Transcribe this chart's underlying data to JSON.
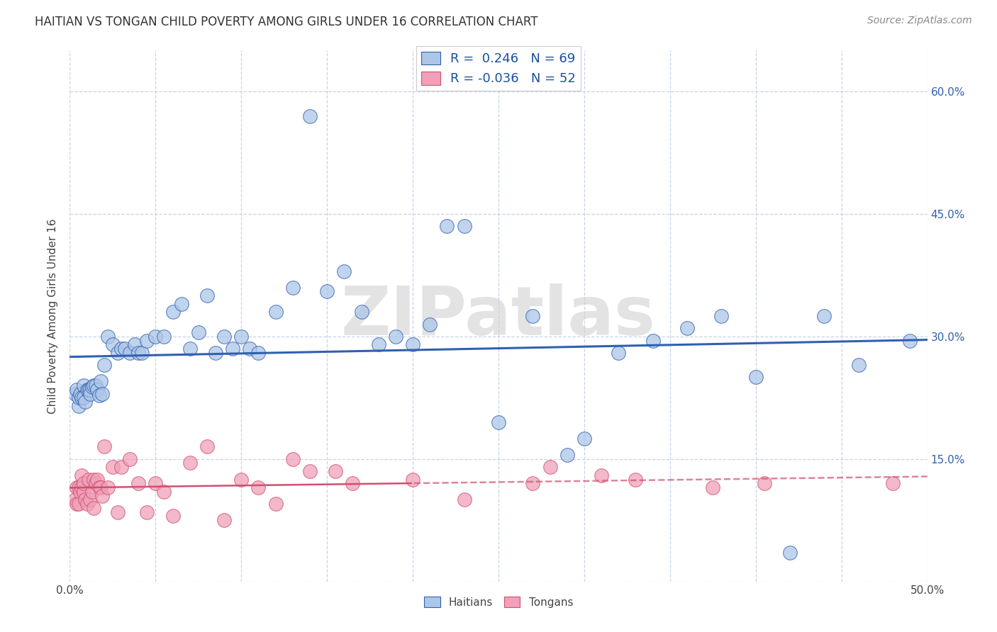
{
  "title": "HAITIAN VS TONGAN CHILD POVERTY AMONG GIRLS UNDER 16 CORRELATION CHART",
  "source": "Source: ZipAtlas.com",
  "ylabel": "Child Poverty Among Girls Under 16",
  "xlim": [
    0.0,
    0.5
  ],
  "ylim": [
    0.0,
    0.65
  ],
  "x_ticks": [
    0.0,
    0.05,
    0.1,
    0.15,
    0.2,
    0.25,
    0.3,
    0.35,
    0.4,
    0.45,
    0.5
  ],
  "y_ticks": [
    0.0,
    0.15,
    0.3,
    0.45,
    0.6
  ],
  "haitian_R": 0.246,
  "haitian_N": 69,
  "tongan_R": -0.036,
  "tongan_N": 52,
  "haitian_color": "#adc6e8",
  "tongan_color": "#f0a0b8",
  "haitian_line_color": "#3060b0",
  "tongan_line_color": "#d05070",
  "background_color": "#ffffff",
  "grid_color": "#c8d4e8",
  "watermark": "ZIPatlas",
  "haitian_x": [
    0.003,
    0.004,
    0.005,
    0.005,
    0.006,
    0.007,
    0.008,
    0.008,
    0.009,
    0.01,
    0.011,
    0.012,
    0.012,
    0.013,
    0.014,
    0.015,
    0.016,
    0.017,
    0.018,
    0.019,
    0.02,
    0.022,
    0.025,
    0.028,
    0.03,
    0.032,
    0.035,
    0.038,
    0.04,
    0.042,
    0.045,
    0.05,
    0.055,
    0.06,
    0.065,
    0.07,
    0.075,
    0.08,
    0.085,
    0.09,
    0.095,
    0.1,
    0.105,
    0.11,
    0.12,
    0.13,
    0.14,
    0.15,
    0.16,
    0.17,
    0.18,
    0.19,
    0.2,
    0.21,
    0.22,
    0.23,
    0.25,
    0.27,
    0.29,
    0.3,
    0.32,
    0.34,
    0.36,
    0.38,
    0.4,
    0.42,
    0.44,
    0.46,
    0.49
  ],
  "haitian_y": [
    0.23,
    0.235,
    0.215,
    0.225,
    0.23,
    0.225,
    0.24,
    0.225,
    0.22,
    0.235,
    0.235,
    0.235,
    0.23,
    0.238,
    0.24,
    0.24,
    0.235,
    0.228,
    0.245,
    0.23,
    0.265,
    0.3,
    0.29,
    0.28,
    0.285,
    0.285,
    0.28,
    0.29,
    0.28,
    0.28,
    0.295,
    0.3,
    0.3,
    0.33,
    0.34,
    0.285,
    0.305,
    0.35,
    0.28,
    0.3,
    0.285,
    0.3,
    0.285,
    0.28,
    0.33,
    0.36,
    0.57,
    0.355,
    0.38,
    0.33,
    0.29,
    0.3,
    0.29,
    0.315,
    0.435,
    0.435,
    0.195,
    0.325,
    0.155,
    0.175,
    0.28,
    0.295,
    0.31,
    0.325,
    0.25,
    0.035,
    0.325,
    0.265,
    0.295
  ],
  "tongan_x": [
    0.003,
    0.004,
    0.004,
    0.005,
    0.005,
    0.006,
    0.007,
    0.007,
    0.008,
    0.008,
    0.009,
    0.01,
    0.011,
    0.012,
    0.013,
    0.014,
    0.014,
    0.015,
    0.016,
    0.017,
    0.018,
    0.019,
    0.02,
    0.022,
    0.025,
    0.028,
    0.03,
    0.035,
    0.04,
    0.045,
    0.05,
    0.055,
    0.06,
    0.07,
    0.08,
    0.09,
    0.1,
    0.11,
    0.12,
    0.13,
    0.14,
    0.155,
    0.165,
    0.2,
    0.23,
    0.27,
    0.28,
    0.31,
    0.33,
    0.375,
    0.405,
    0.48
  ],
  "tongan_y": [
    0.1,
    0.115,
    0.095,
    0.115,
    0.095,
    0.11,
    0.13,
    0.115,
    0.11,
    0.12,
    0.1,
    0.095,
    0.125,
    0.1,
    0.11,
    0.125,
    0.09,
    0.12,
    0.125,
    0.115,
    0.115,
    0.105,
    0.165,
    0.115,
    0.14,
    0.085,
    0.14,
    0.15,
    0.12,
    0.085,
    0.12,
    0.11,
    0.08,
    0.145,
    0.165,
    0.075,
    0.125,
    0.115,
    0.095,
    0.15,
    0.135,
    0.135,
    0.12,
    0.125,
    0.1,
    0.12,
    0.14,
    0.13,
    0.125,
    0.115,
    0.12,
    0.12
  ]
}
